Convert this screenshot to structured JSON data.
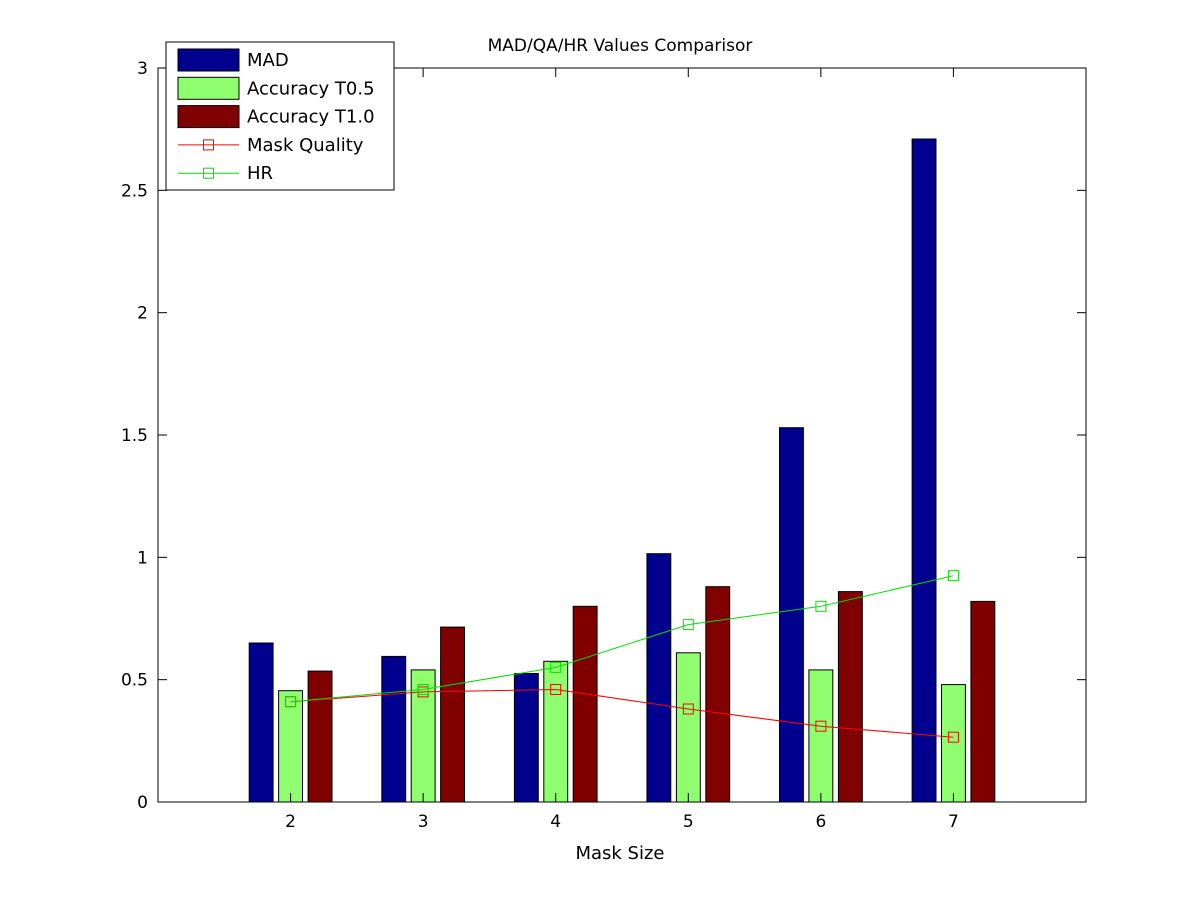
{
  "chart_data": {
    "type": "bar",
    "title": "MAD/QA/HR Values Comparisor",
    "xlabel": "Mask Size",
    "ylabel": "",
    "categories": [
      "2",
      "3",
      "4",
      "5",
      "6",
      "7"
    ],
    "xlim": [
      1,
      8
    ],
    "ylim": [
      0,
      3
    ],
    "yticks": [
      "0",
      "0.5",
      "1",
      "1.5",
      "2",
      "2.5",
      "3"
    ],
    "grid": false,
    "legend_position": "top-left",
    "series": [
      {
        "name": "MAD",
        "kind": "bar",
        "color": "#00008f",
        "values": [
          0.65,
          0.595,
          0.525,
          1.015,
          1.53,
          2.71
        ]
      },
      {
        "name": "Accuracy T0.5",
        "kind": "bar",
        "color": "#8fff70",
        "values": [
          0.455,
          0.54,
          0.575,
          0.61,
          0.54,
          0.48
        ]
      },
      {
        "name": "Accuracy T1.0",
        "kind": "bar",
        "color": "#800000",
        "values": [
          0.535,
          0.715,
          0.8,
          0.88,
          0.86,
          0.82
        ]
      },
      {
        "name": "Mask Quality",
        "kind": "line",
        "marker": "square",
        "color": "#ff0000",
        "values": [
          0.41,
          0.45,
          0.46,
          0.38,
          0.31,
          0.265
        ]
      },
      {
        "name": "HR",
        "kind": "line",
        "marker": "square",
        "color": "#00e000",
        "values": [
          0.41,
          0.46,
          0.55,
          0.725,
          0.8,
          0.925
        ]
      }
    ]
  }
}
